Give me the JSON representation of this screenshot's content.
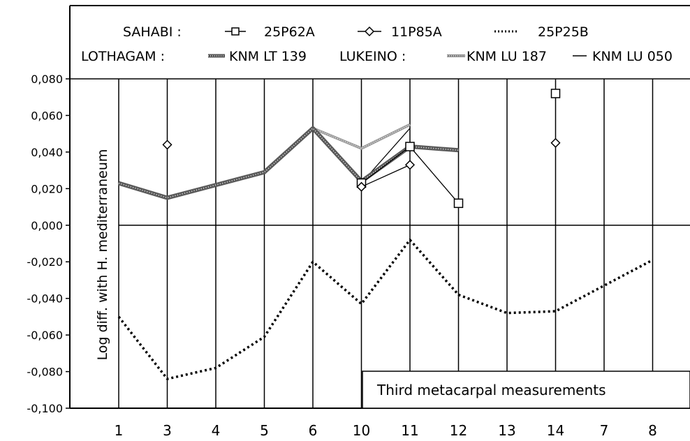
{
  "chart_data": {
    "type": "line",
    "ylabel": "Log diff. with H. mediterraneum",
    "annotation": "Third metacarpal measurements",
    "ylim": [
      -0.1,
      0.08
    ],
    "y_ticks": [
      "0,080",
      "0,060",
      "0,040",
      "0,020",
      "0,000",
      "-0,020",
      "-0,040",
      "-0,060",
      "-0,080",
      "-0,100"
    ],
    "categories": [
      "1",
      "3",
      "4",
      "5",
      "6",
      "10",
      "11",
      "12",
      "13",
      "14",
      "7",
      "8"
    ],
    "grid": "vertical lines at each category",
    "legend_placement": "top",
    "legend": {
      "group1_label": "SAHABI :",
      "group2_label": "LOTHAGAM :",
      "group3_label": "LUKEINO :"
    },
    "series": [
      {
        "name": "25P62A",
        "style": "square-markers",
        "values": [
          null,
          null,
          null,
          null,
          null,
          0.023,
          0.043,
          0.012,
          null,
          0.072,
          null,
          null
        ]
      },
      {
        "name": "11P85A",
        "style": "diamond-markers",
        "values": [
          null,
          0.044,
          null,
          null,
          null,
          0.021,
          0.033,
          null,
          null,
          0.045,
          null,
          null
        ]
      },
      {
        "name": "25P25B",
        "style": "dotted",
        "values": [
          -0.05,
          -0.084,
          -0.078,
          -0.061,
          -0.02,
          -0.043,
          -0.008,
          -0.038,
          -0.048,
          -0.047,
          -0.033,
          -0.019
        ]
      },
      {
        "name": "KNM LT 139",
        "style": "hatched",
        "values": [
          0.023,
          0.015,
          0.022,
          0.029,
          0.053,
          0.024,
          0.043,
          0.041,
          null,
          null,
          null,
          null
        ]
      },
      {
        "name": "KNM LU 187",
        "style": "light-hatched",
        "values": [
          0.023,
          0.015,
          0.022,
          0.029,
          0.053,
          0.042,
          0.055,
          null,
          null,
          null,
          null,
          null
        ]
      },
      {
        "name": "KNM LU 050",
        "style": "thin-solid",
        "values": [
          0.023,
          0.015,
          0.022,
          0.029,
          0.053,
          0.023,
          0.053,
          null,
          null,
          null,
          null,
          null
        ]
      }
    ]
  }
}
